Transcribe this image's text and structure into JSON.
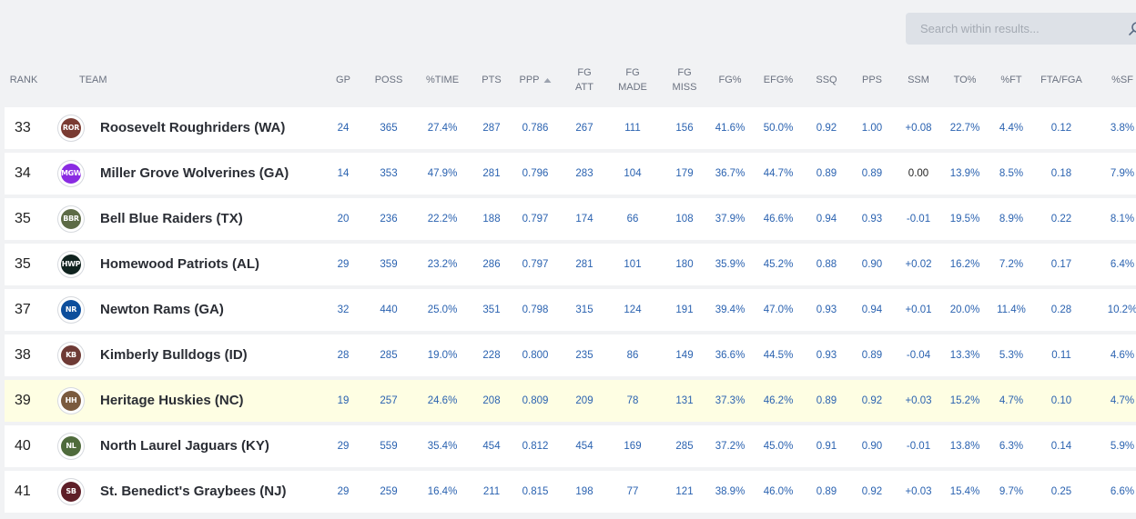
{
  "search": {
    "placeholder": "Search within results..."
  },
  "columns": [
    {
      "key": "rank",
      "label": "RANK"
    },
    {
      "key": "team",
      "label": "TEAM"
    },
    {
      "key": "gp",
      "label": "GP"
    },
    {
      "key": "poss",
      "label": "POSS"
    },
    {
      "key": "time",
      "label": "%TIME"
    },
    {
      "key": "pts",
      "label": "PTS"
    },
    {
      "key": "ppp",
      "label": "PPP"
    },
    {
      "key": "fgatt",
      "label": "FG\nATT"
    },
    {
      "key": "fgmade",
      "label": "FG\nMADE"
    },
    {
      "key": "fgmiss",
      "label": "FG\nMISS"
    },
    {
      "key": "fgpct",
      "label": "FG%"
    },
    {
      "key": "efg",
      "label": "EFG%"
    },
    {
      "key": "ssq",
      "label": "SSQ"
    },
    {
      "key": "pps",
      "label": "PPS"
    },
    {
      "key": "ssm",
      "label": "SSM"
    },
    {
      "key": "to",
      "label": "TO%"
    },
    {
      "key": "ft",
      "label": "%FT"
    },
    {
      "key": "ftafga",
      "label": "FTA/FGA"
    },
    {
      "key": "sf",
      "label": "%SF"
    }
  ],
  "sort": {
    "column": "ppp",
    "direction": "asc"
  },
  "rows": [
    {
      "rank": "33",
      "abbr": "ROR",
      "color": "#7a3b32",
      "team": "Roosevelt Roughriders (WA)",
      "gp": "24",
      "poss": "365",
      "time": "27.4%",
      "pts": "287",
      "ppp": "0.786",
      "fgatt": "267",
      "fgmade": "111",
      "fgmiss": "156",
      "fgpct": "41.6%",
      "efg": "50.0%",
      "ssq": "0.92",
      "pps": "1.00",
      "ssm": "+0.08",
      "to": "22.7%",
      "ft": "4.4%",
      "ftafga": "0.12",
      "sf": "3.8%"
    },
    {
      "rank": "34",
      "abbr": "MGW",
      "color": "#8a2be2",
      "team": "Miller Grove Wolverines (GA)",
      "gp": "14",
      "poss": "353",
      "time": "47.9%",
      "pts": "281",
      "ppp": "0.796",
      "fgatt": "283",
      "fgmade": "104",
      "fgmiss": "179",
      "fgpct": "36.7%",
      "efg": "44.7%",
      "ssq": "0.89",
      "pps": "0.89",
      "ssm": "0.00",
      "to": "13.9%",
      "ft": "8.5%",
      "ftafga": "0.18",
      "sf": "7.9%"
    },
    {
      "rank": "35",
      "abbr": "BBR",
      "color": "#5d6b46",
      "team": "Bell Blue Raiders (TX)",
      "gp": "20",
      "poss": "236",
      "time": "22.2%",
      "pts": "188",
      "ppp": "0.797",
      "fgatt": "174",
      "fgmade": "66",
      "fgmiss": "108",
      "fgpct": "37.9%",
      "efg": "46.6%",
      "ssq": "0.94",
      "pps": "0.93",
      "ssm": "-0.01",
      "to": "19.5%",
      "ft": "8.9%",
      "ftafga": "0.22",
      "sf": "8.1%"
    },
    {
      "rank": "35",
      "abbr": "HWP",
      "color": "#10231f",
      "team": "Homewood Patriots (AL)",
      "gp": "29",
      "poss": "359",
      "time": "23.2%",
      "pts": "286",
      "ppp": "0.797",
      "fgatt": "281",
      "fgmade": "101",
      "fgmiss": "180",
      "fgpct": "35.9%",
      "efg": "45.2%",
      "ssq": "0.88",
      "pps": "0.90",
      "ssm": "+0.02",
      "to": "16.2%",
      "ft": "7.2%",
      "ftafga": "0.17",
      "sf": "6.4%"
    },
    {
      "rank": "37",
      "abbr": "NR",
      "color": "#0d4e9c",
      "team": "Newton Rams (GA)",
      "gp": "32",
      "poss": "440",
      "time": "25.0%",
      "pts": "351",
      "ppp": "0.798",
      "fgatt": "315",
      "fgmade": "124",
      "fgmiss": "191",
      "fgpct": "39.4%",
      "efg": "47.0%",
      "ssq": "0.93",
      "pps": "0.94",
      "ssm": "+0.01",
      "to": "20.0%",
      "ft": "11.4%",
      "ftafga": "0.28",
      "sf": "10.2%"
    },
    {
      "rank": "38",
      "abbr": "KB",
      "color": "#6e3a35",
      "team": "Kimberly Bulldogs (ID)",
      "gp": "28",
      "poss": "285",
      "time": "19.0%",
      "pts": "228",
      "ppp": "0.800",
      "fgatt": "235",
      "fgmade": "86",
      "fgmiss": "149",
      "fgpct": "36.6%",
      "efg": "44.5%",
      "ssq": "0.93",
      "pps": "0.89",
      "ssm": "-0.04",
      "to": "13.3%",
      "ft": "5.3%",
      "ftafga": "0.11",
      "sf": "4.6%"
    },
    {
      "rank": "39",
      "abbr": "HH",
      "color": "#7a5a3e",
      "team": "Heritage Huskies (NC)",
      "gp": "19",
      "poss": "257",
      "time": "24.6%",
      "pts": "208",
      "ppp": "0.809",
      "fgatt": "209",
      "fgmade": "78",
      "fgmiss": "131",
      "fgpct": "37.3%",
      "efg": "46.2%",
      "ssq": "0.89",
      "pps": "0.92",
      "ssm": "+0.03",
      "to": "15.2%",
      "ft": "4.7%",
      "ftafga": "0.10",
      "sf": "4.7%",
      "highlight": true
    },
    {
      "rank": "40",
      "abbr": "NL",
      "color": "#4f6b3c",
      "team": "North Laurel Jaguars (KY)",
      "gp": "29",
      "poss": "559",
      "time": "35.4%",
      "pts": "454",
      "ppp": "0.812",
      "fgatt": "454",
      "fgmade": "169",
      "fgmiss": "285",
      "fgpct": "37.2%",
      "efg": "45.0%",
      "ssq": "0.91",
      "pps": "0.90",
      "ssm": "-0.01",
      "to": "13.8%",
      "ft": "6.3%",
      "ftafga": "0.14",
      "sf": "5.9%"
    },
    {
      "rank": "41",
      "abbr": "SB",
      "color": "#5e1f28",
      "team": "St. Benedict's Graybees (NJ)",
      "gp": "29",
      "poss": "259",
      "time": "16.4%",
      "pts": "211",
      "ppp": "0.815",
      "fgatt": "198",
      "fgmade": "77",
      "fgmiss": "121",
      "fgpct": "38.9%",
      "efg": "46.0%",
      "ssq": "0.89",
      "pps": "0.92",
      "ssm": "+0.03",
      "to": "15.4%",
      "ft": "9.7%",
      "ftafga": "0.25",
      "sf": "6.6%"
    }
  ]
}
